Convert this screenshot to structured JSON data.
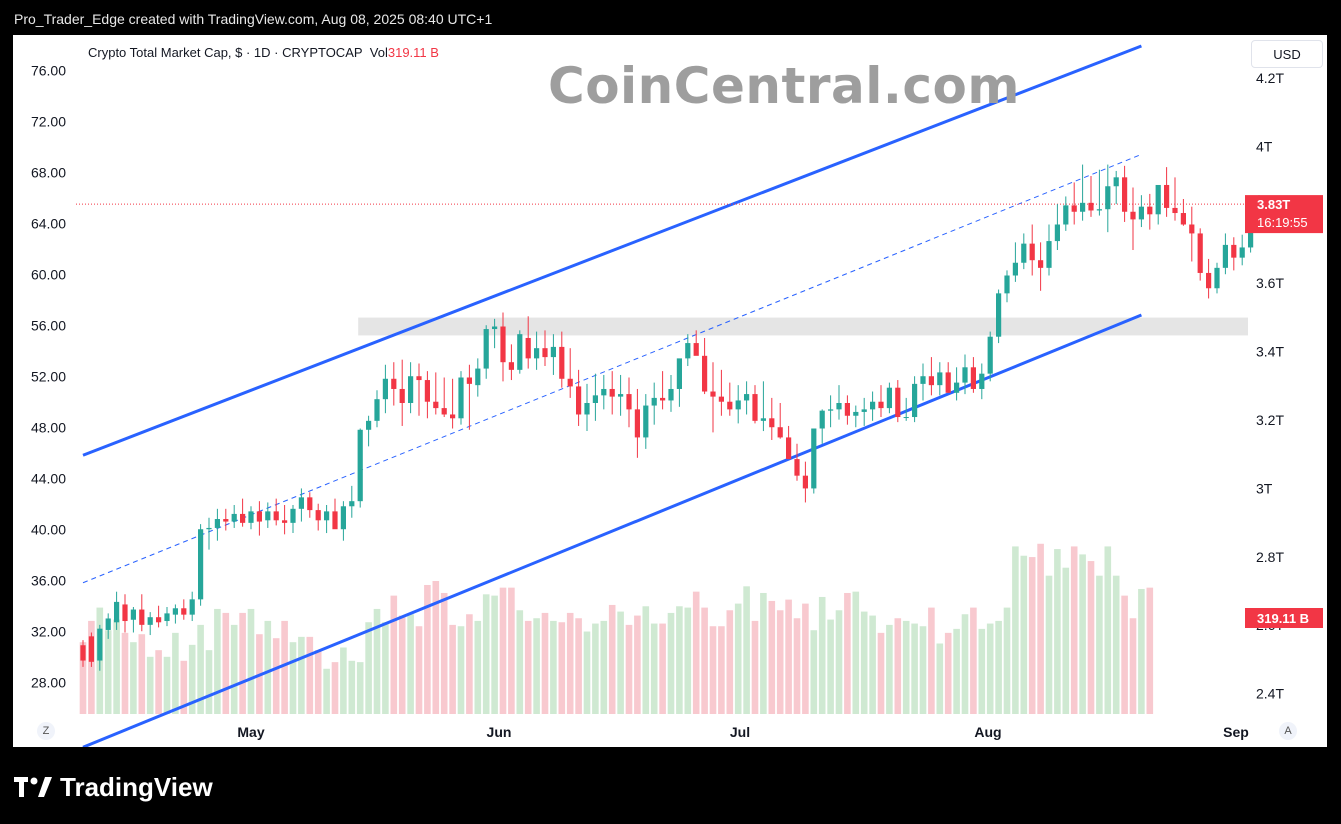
{
  "header": {
    "text": "Pro_Trader_Edge created with TradingView.com, Aug 08, 2025 08:40 UTC+1"
  },
  "symbol": {
    "name": "Crypto Total Market Cap, $ · 1D · CRYPTOCAP",
    "vol_label": "Vol",
    "vol_value": "319.11 B"
  },
  "watermark": "CoinCentral.com",
  "currency_button": "USD",
  "axis_buttons": {
    "left": "Z",
    "right": "A"
  },
  "footer": {
    "brand": "TradingView"
  },
  "colors": {
    "up": "#26a69a",
    "down": "#f23645",
    "channel": "#2962ff",
    "midline": "#2962ff",
    "zone": "#e0e0e0",
    "price_tag": "#f23645"
  },
  "chart_data": {
    "type": "candlestick",
    "title": "Crypto Total Market Cap, $ · 1D · CRYPTOCAP",
    "x_ticks": [
      "May",
      "Jun",
      "Jul",
      "Aug",
      "Sep"
    ],
    "left_axis": {
      "ticks": [
        "76.00",
        "72.00",
        "68.00",
        "64.00",
        "60.00",
        "56.00",
        "52.00",
        "48.00",
        "44.00",
        "40.00",
        "36.00",
        "32.00",
        "28.00"
      ],
      "ylim": [
        26.0,
        78.0
      ]
    },
    "right_axis": {
      "ticks": [
        "4.2T",
        "4T",
        "3.8T",
        "3.6T",
        "3.4T",
        "3.2T",
        "3T",
        "2.8T",
        "2.6T",
        "2.4T"
      ]
    },
    "last_price": {
      "value": "3.83T",
      "countdown": "16:19:55",
      "level": 65.6
    },
    "last_volume": {
      "value": "319.11 B"
    },
    "channel": {
      "upper": [
        [
          0,
          45.9
        ],
        [
          126,
          78.0
        ]
      ],
      "lower": [
        [
          0,
          23.0
        ],
        [
          126,
          56.9
        ]
      ],
      "middle": [
        [
          0,
          35.9
        ],
        [
          126,
          69.5
        ]
      ]
    },
    "resistance_zone": {
      "from_index": 33,
      "to_index": 126,
      "low": 55.3,
      "high": 56.7
    },
    "ohlc": [
      [
        31,
        31.4,
        29.3,
        29.8
      ],
      [
        31.7,
        32.0,
        29.3,
        29.7
      ],
      [
        29.8,
        32.6,
        29.0,
        32.3
      ],
      [
        32.2,
        33.5,
        31.5,
        33.1
      ],
      [
        32.8,
        35.2,
        32.2,
        34.4
      ],
      [
        34.2,
        35.0,
        32.0,
        32.9
      ],
      [
        33.0,
        34.0,
        32.0,
        33.8
      ],
      [
        33.8,
        35.0,
        32.1,
        32.6
      ],
      [
        32.6,
        33.6,
        31.8,
        33.2
      ],
      [
        33.2,
        34.1,
        32.4,
        32.8
      ],
      [
        32.9,
        34.0,
        32.5,
        33.5
      ],
      [
        33.4,
        34.2,
        32.7,
        33.9
      ],
      [
        33.9,
        34.6,
        33.0,
        33.4
      ],
      [
        33.4,
        35.2,
        32.9,
        34.6
      ],
      [
        34.6,
        40.5,
        34.1,
        40.1
      ],
      [
        40.1,
        41.0,
        38.5,
        40.2
      ],
      [
        40.2,
        41.7,
        39.2,
        40.9
      ],
      [
        40.9,
        41.7,
        40.0,
        40.7
      ],
      [
        40.7,
        42.0,
        40.2,
        41.3
      ],
      [
        41.3,
        42.5,
        40.3,
        40.6
      ],
      [
        40.6,
        41.9,
        40.1,
        41.5
      ],
      [
        41.5,
        42.3,
        39.6,
        40.7
      ],
      [
        40.8,
        42.2,
        40.2,
        41.5
      ],
      [
        41.5,
        42.5,
        40.4,
        40.8
      ],
      [
        40.8,
        42.0,
        39.7,
        40.6
      ],
      [
        40.6,
        42.0,
        39.8,
        41.7
      ],
      [
        41.7,
        43.3,
        40.7,
        42.6
      ],
      [
        42.6,
        43.0,
        41.0,
        41.6
      ],
      [
        41.6,
        42.1,
        40.0,
        40.8
      ],
      [
        40.8,
        42.0,
        39.8,
        41.5
      ],
      [
        41.5,
        42.5,
        40.3,
        40.1
      ],
      [
        40.1,
        42.3,
        39.2,
        41.9
      ],
      [
        41.9,
        43.5,
        41.0,
        42.3
      ],
      [
        42.3,
        48.0,
        41.8,
        47.9
      ],
      [
        47.9,
        49.0,
        46.6,
        48.6
      ],
      [
        48.6,
        51.0,
        48.1,
        50.3
      ],
      [
        50.3,
        53.0,
        49.2,
        51.9
      ],
      [
        51.9,
        53.2,
        49.8,
        51.1
      ],
      [
        51.1,
        53.4,
        48.2,
        50.0
      ],
      [
        50.0,
        53.2,
        49.2,
        52.1
      ],
      [
        52.1,
        53.1,
        49.0,
        51.8
      ],
      [
        51.8,
        52.5,
        48.8,
        50.1
      ],
      [
        50.1,
        52.4,
        49.1,
        49.6
      ],
      [
        49.6,
        52.0,
        48.9,
        49.1
      ],
      [
        49.1,
        51.9,
        48.0,
        48.8
      ],
      [
        48.8,
        52.5,
        48.3,
        52.0
      ],
      [
        52.0,
        53.0,
        47.9,
        51.5
      ],
      [
        51.4,
        53.5,
        50.5,
        52.7
      ],
      [
        52.7,
        56.1,
        51.9,
        55.8
      ],
      [
        55.8,
        56.6,
        54.3,
        56.0
      ],
      [
        56.0,
        57.1,
        51.7,
        53.2
      ],
      [
        53.2,
        54.6,
        51.8,
        52.6
      ],
      [
        52.6,
        55.7,
        52.3,
        55.4
      ],
      [
        55.1,
        56.8,
        52.7,
        53.5
      ],
      [
        53.5,
        55.6,
        52.6,
        54.3
      ],
      [
        54.3,
        55.7,
        52.9,
        53.6
      ],
      [
        53.6,
        55.4,
        52.2,
        54.4
      ],
      [
        54.4,
        55.6,
        51.2,
        51.9
      ],
      [
        51.9,
        54.3,
        50.4,
        51.3
      ],
      [
        51.3,
        52.6,
        48.2,
        49.1
      ],
      [
        49.1,
        51.5,
        47.8,
        50.0
      ],
      [
        50.0,
        52.3,
        48.6,
        50.6
      ],
      [
        50.6,
        52.2,
        49.5,
        51.1
      ],
      [
        51.1,
        52.5,
        49.1,
        50.5
      ],
      [
        50.5,
        52.2,
        49.0,
        50.7
      ],
      [
        50.7,
        52.0,
        48.1,
        49.5
      ],
      [
        49.5,
        51.1,
        45.7,
        47.3
      ],
      [
        47.3,
        50.7,
        46.4,
        49.8
      ],
      [
        49.8,
        51.6,
        48.3,
        50.4
      ],
      [
        50.4,
        52.5,
        49.5,
        50.2
      ],
      [
        50.2,
        52.2,
        49.3,
        51.1
      ],
      [
        51.1,
        53.0,
        49.7,
        53.5
      ],
      [
        53.5,
        55.4,
        52.9,
        54.7
      ],
      [
        54.7,
        55.7,
        53.8,
        53.7
      ],
      [
        53.7,
        55.1,
        50.7,
        50.9
      ],
      [
        50.9,
        53.2,
        47.7,
        50.5
      ],
      [
        50.5,
        52.6,
        49.0,
        50.1
      ],
      [
        50.1,
        51.6,
        49.0,
        49.5
      ],
      [
        49.5,
        51.4,
        48.4,
        50.2
      ],
      [
        50.2,
        51.7,
        49.1,
        50.7
      ],
      [
        50.7,
        51.4,
        48.4,
        48.6
      ],
      [
        48.6,
        51.7,
        47.8,
        48.8
      ],
      [
        48.8,
        50.4,
        47.1,
        48.1
      ],
      [
        48.1,
        50.0,
        47.2,
        47.3
      ],
      [
        47.3,
        48.2,
        45.6,
        45.6
      ],
      [
        45.6,
        46.8,
        43.9,
        44.3
      ],
      [
        44.3,
        45.4,
        42.2,
        43.3
      ],
      [
        43.3,
        48.0,
        42.9,
        48.0
      ],
      [
        48.0,
        49.5,
        46.8,
        49.4
      ],
      [
        49.4,
        50.6,
        48.1,
        49.5
      ],
      [
        49.5,
        51.4,
        48.7,
        50.0
      ],
      [
        50.0,
        50.6,
        48.3,
        49.0
      ],
      [
        49.0,
        49.8,
        48.1,
        49.3
      ],
      [
        49.3,
        50.4,
        48.2,
        49.5
      ],
      [
        49.5,
        50.9,
        48.6,
        50.1
      ],
      [
        50.1,
        51.4,
        48.9,
        49.6
      ],
      [
        49.6,
        51.6,
        49.2,
        51.2
      ],
      [
        51.2,
        51.8,
        48.5,
        48.9
      ],
      [
        48.9,
        50.4,
        48.6,
        48.9
      ],
      [
        48.9,
        52.1,
        48.5,
        51.5
      ],
      [
        51.5,
        53.1,
        50.2,
        52.1
      ],
      [
        52.1,
        53.6,
        50.6,
        51.4
      ],
      [
        51.4,
        53.2,
        50.6,
        52.4
      ],
      [
        52.4,
        53.2,
        50.8,
        50.8
      ],
      [
        50.8,
        52.8,
        50.2,
        51.6
      ],
      [
        51.6,
        53.8,
        50.7,
        52.8
      ],
      [
        52.8,
        53.6,
        50.8,
        51.1
      ],
      [
        51.1,
        53.1,
        50.3,
        52.3
      ],
      [
        52.3,
        55.6,
        51.7,
        55.2
      ],
      [
        55.2,
        58.9,
        54.7,
        58.6
      ],
      [
        58.6,
        60.4,
        57.9,
        60.0
      ],
      [
        60.0,
        62.6,
        59.5,
        61.0
      ],
      [
        61.0,
        63.3,
        60.5,
        62.5
      ],
      [
        62.5,
        64.0,
        60.0,
        61.2
      ],
      [
        61.2,
        62.6,
        58.8,
        60.6
      ],
      [
        60.6,
        64.0,
        60.0,
        62.7
      ],
      [
        62.7,
        65.6,
        62.0,
        64.0
      ],
      [
        64.0,
        66.2,
        63.5,
        65.5
      ],
      [
        65.5,
        67.3,
        64.0,
        65.0
      ],
      [
        65.0,
        68.7,
        64.3,
        65.7
      ],
      [
        65.7,
        67.8,
        64.6,
        65.1
      ],
      [
        65.1,
        68.3,
        64.7,
        65.2
      ],
      [
        65.2,
        68.7,
        63.4,
        67.0
      ],
      [
        67.0,
        68.2,
        65.6,
        67.7
      ],
      [
        67.7,
        68.6,
        64.2,
        65.0
      ],
      [
        65.0,
        66.9,
        62.0,
        64.4
      ],
      [
        64.4,
        66.3,
        63.8,
        65.4
      ],
      [
        65.4,
        66.4,
        63.6,
        64.8
      ],
      [
        64.8,
        67.0,
        64.0,
        67.1
      ],
      [
        67.1,
        68.5,
        64.6,
        65.3
      ],
      [
        65.3,
        67.7,
        64.3,
        64.9
      ],
      [
        64.9,
        66.0,
        63.9,
        64.0
      ],
      [
        64.0,
        65.4,
        61.1,
        63.3
      ],
      [
        63.3,
        63.7,
        59.6,
        60.2
      ],
      [
        60.2,
        61.3,
        58.2,
        59.0
      ],
      [
        59.0,
        61.0,
        58.6,
        60.6
      ],
      [
        60.6,
        63.3,
        60.1,
        62.4
      ],
      [
        62.4,
        63.0,
        60.4,
        61.4
      ],
      [
        61.4,
        63.2,
        60.8,
        62.2
      ],
      [
        62.2,
        65.9,
        61.8,
        65.5
      ],
      [
        65.5,
        66.3,
        64.5,
        65.6
      ]
    ],
    "volume": [
      54,
      70,
      80,
      63,
      71,
      61,
      54,
      60,
      43,
      48,
      43,
      61,
      40,
      52,
      67,
      48,
      79,
      76,
      67,
      76,
      79,
      60,
      70,
      57,
      70,
      54,
      58,
      58,
      48,
      34,
      39,
      50,
      40,
      39,
      69,
      79,
      69,
      89,
      74,
      75,
      66,
      97,
      100,
      91,
      67,
      66,
      75,
      70,
      90,
      89,
      95,
      95,
      78,
      70,
      72,
      76,
      70,
      69,
      76,
      72,
      62,
      68,
      70,
      82,
      77,
      67,
      74,
      81,
      68,
      68,
      76,
      81,
      80,
      92,
      80,
      66,
      66,
      78,
      83,
      96,
      70,
      91,
      85,
      78,
      86,
      72,
      83,
      63,
      88,
      71,
      78,
      91,
      92,
      77,
      74,
      61,
      67,
      72,
      70,
      68,
      66,
      80,
      53,
      61,
      64,
      75,
      80,
      64,
      68,
      70,
      80,
      126,
      119,
      118,
      128,
      104,
      124,
      110,
      126,
      120,
      115,
      104,
      126,
      104,
      89,
      72,
      94,
      95
    ]
  }
}
